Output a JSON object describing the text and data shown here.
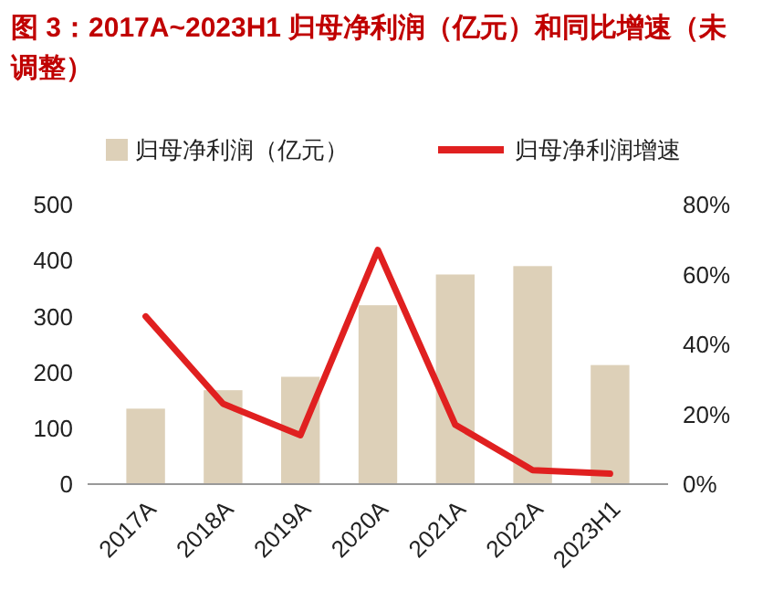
{
  "chart_data": {
    "type": "bar",
    "title": "图 3：2017A~2023H1 归母净利润（亿元）和同比增速（未调整）",
    "categories": [
      "2017A",
      "2018A",
      "2019A",
      "2020A",
      "2021A",
      "2022A",
      "2023H1"
    ],
    "series": [
      {
        "name": "归母净利润（亿元）",
        "color": "#ddd0b8",
        "values": [
          135,
          168,
          192,
          320,
          375,
          390,
          213
        ]
      },
      {
        "name": "归母净利润增速",
        "type": "line",
        "axis": "y2",
        "color": "#e02020",
        "values": [
          48,
          23,
          14,
          67,
          17,
          4,
          3
        ]
      }
    ],
    "ylim": [
      0,
      500
    ],
    "yticks": [
      0,
      100,
      200,
      300,
      400,
      500
    ],
    "y2lim": [
      0,
      80
    ],
    "y2ticks": [
      {
        "value": 0,
        "label": "0%"
      },
      {
        "value": 20,
        "label": "20%"
      },
      {
        "value": 40,
        "label": "40%"
      },
      {
        "value": 60,
        "label": "60%"
      },
      {
        "value": 80,
        "label": "80%"
      }
    ],
    "legend": "top",
    "grid": false,
    "marker": "none",
    "line_style": "solid"
  }
}
